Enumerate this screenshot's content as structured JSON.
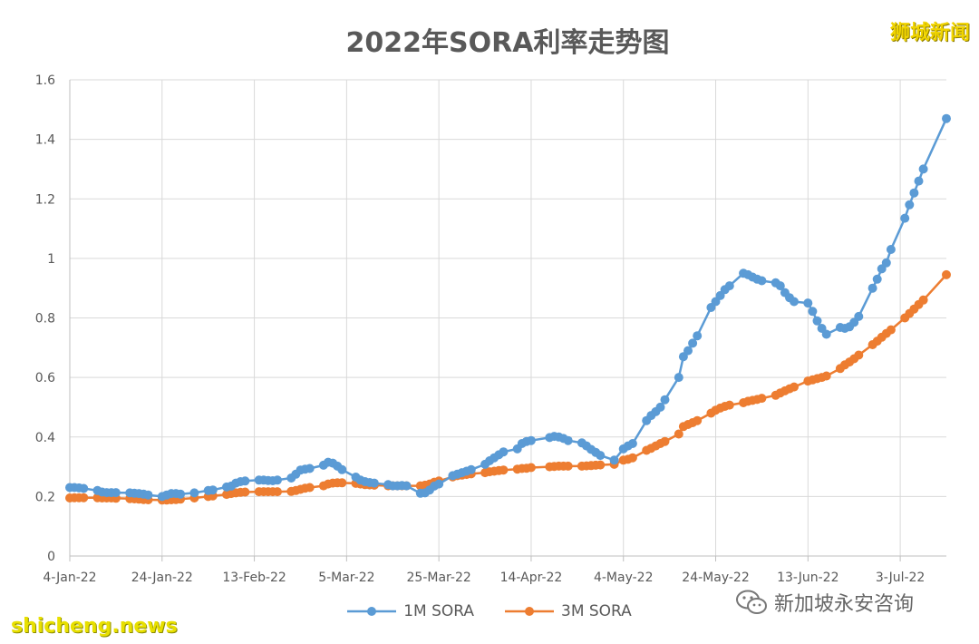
{
  "watermarks": {
    "top_right": "狮城新闻",
    "bottom_left": "shicheng.news",
    "wechat": "新加坡永安咨询"
  },
  "colors": {
    "series_1m": "#5b9bd5",
    "series_3m": "#ed7d31",
    "gridline": "#d9d9d9"
  },
  "chart_data": {
    "type": "line",
    "title": "2022年SORA利率走势图",
    "xlabel": "",
    "ylabel": "",
    "ylim": [
      0,
      1.6
    ],
    "y_ticks": [
      "0",
      "0.2",
      "0.4",
      "0.6",
      "0.8",
      "1",
      "1.2",
      "1.4",
      "1.6"
    ],
    "x_ticks": [
      "4-Jan-22",
      "24-Jan-22",
      "13-Feb-22",
      "5-Mar-22",
      "25-Mar-22",
      "14-Apr-22",
      "4-May-22",
      "24-May-22",
      "13-Jun-22",
      "3-Jul-22"
    ],
    "grid": true,
    "legend": "bottom",
    "series": [
      {
        "name": "1M SORA",
        "points": [
          [
            "2022-01-04",
            0.23
          ],
          [
            "2022-01-05",
            0.23
          ],
          [
            "2022-01-06",
            0.229
          ],
          [
            "2022-01-07",
            0.227
          ],
          [
            "2022-01-10",
            0.22
          ],
          [
            "2022-01-11",
            0.215
          ],
          [
            "2022-01-12",
            0.213
          ],
          [
            "2022-01-13",
            0.213
          ],
          [
            "2022-01-14",
            0.213
          ],
          [
            "2022-01-17",
            0.212
          ],
          [
            "2022-01-18",
            0.211
          ],
          [
            "2022-01-19",
            0.21
          ],
          [
            "2022-01-20",
            0.208
          ],
          [
            "2022-01-21",
            0.205
          ],
          [
            "2022-01-24",
            0.2
          ],
          [
            "2022-01-25",
            0.205
          ],
          [
            "2022-01-26",
            0.21
          ],
          [
            "2022-01-27",
            0.21
          ],
          [
            "2022-01-28",
            0.208
          ],
          [
            "2022-01-31",
            0.212
          ],
          [
            "2022-02-03",
            0.22
          ],
          [
            "2022-02-04",
            0.222
          ],
          [
            "2022-02-07",
            0.232
          ],
          [
            "2022-02-08",
            0.235
          ],
          [
            "2022-02-09",
            0.245
          ],
          [
            "2022-02-10",
            0.25
          ],
          [
            "2022-02-11",
            0.252
          ],
          [
            "2022-02-14",
            0.255
          ],
          [
            "2022-02-15",
            0.255
          ],
          [
            "2022-02-16",
            0.254
          ],
          [
            "2022-02-17",
            0.253
          ],
          [
            "2022-02-18",
            0.255
          ],
          [
            "2022-02-21",
            0.262
          ],
          [
            "2022-02-22",
            0.275
          ],
          [
            "2022-02-23",
            0.289
          ],
          [
            "2022-02-24",
            0.292
          ],
          [
            "2022-02-25",
            0.294
          ],
          [
            "2022-02-28",
            0.305
          ],
          [
            "2022-03-01",
            0.315
          ],
          [
            "2022-03-02",
            0.312
          ],
          [
            "2022-03-03",
            0.302
          ],
          [
            "2022-03-04",
            0.29
          ],
          [
            "2022-03-07",
            0.265
          ],
          [
            "2022-03-08",
            0.255
          ],
          [
            "2022-03-09",
            0.25
          ],
          [
            "2022-03-10",
            0.247
          ],
          [
            "2022-03-11",
            0.245
          ],
          [
            "2022-03-14",
            0.24
          ],
          [
            "2022-03-15",
            0.236
          ],
          [
            "2022-03-16",
            0.236
          ],
          [
            "2022-03-17",
            0.237
          ],
          [
            "2022-03-18",
            0.236
          ],
          [
            "2022-03-21",
            0.211
          ],
          [
            "2022-03-22",
            0.212
          ],
          [
            "2022-03-23",
            0.222
          ],
          [
            "2022-03-24",
            0.235
          ],
          [
            "2022-03-25",
            0.242
          ],
          [
            "2022-03-28",
            0.27
          ],
          [
            "2022-03-29",
            0.275
          ],
          [
            "2022-03-30",
            0.28
          ],
          [
            "2022-03-31",
            0.285
          ],
          [
            "2022-04-01",
            0.29
          ],
          [
            "2022-04-04",
            0.308
          ],
          [
            "2022-04-05",
            0.32
          ],
          [
            "2022-04-06",
            0.33
          ],
          [
            "2022-04-07",
            0.34
          ],
          [
            "2022-04-08",
            0.35
          ],
          [
            "2022-04-11",
            0.36
          ],
          [
            "2022-04-12",
            0.378
          ],
          [
            "2022-04-13",
            0.385
          ],
          [
            "2022-04-14",
            0.388
          ],
          [
            "2022-04-18",
            0.398
          ],
          [
            "2022-04-19",
            0.402
          ],
          [
            "2022-04-20",
            0.4
          ],
          [
            "2022-04-21",
            0.395
          ],
          [
            "2022-04-22",
            0.388
          ],
          [
            "2022-04-25",
            0.38
          ],
          [
            "2022-04-26",
            0.37
          ],
          [
            "2022-04-27",
            0.358
          ],
          [
            "2022-04-28",
            0.348
          ],
          [
            "2022-04-29",
            0.338
          ],
          [
            "2022-05-02",
            0.322
          ],
          [
            "2022-05-04",
            0.36
          ],
          [
            "2022-05-05",
            0.37
          ],
          [
            "2022-05-06",
            0.378
          ],
          [
            "2022-05-09",
            0.455
          ],
          [
            "2022-05-10",
            0.472
          ],
          [
            "2022-05-11",
            0.485
          ],
          [
            "2022-05-12",
            0.5
          ],
          [
            "2022-05-13",
            0.525
          ],
          [
            "2022-05-16",
            0.6
          ],
          [
            "2022-05-17",
            0.67
          ],
          [
            "2022-05-18",
            0.69
          ],
          [
            "2022-05-19",
            0.715
          ],
          [
            "2022-05-20",
            0.74
          ],
          [
            "2022-05-23",
            0.835
          ],
          [
            "2022-05-24",
            0.855
          ],
          [
            "2022-05-25",
            0.875
          ],
          [
            "2022-05-26",
            0.895
          ],
          [
            "2022-05-27",
            0.908
          ],
          [
            "2022-05-30",
            0.95
          ],
          [
            "2022-05-31",
            0.945
          ],
          [
            "2022-06-01",
            0.937
          ],
          [
            "2022-06-02",
            0.93
          ],
          [
            "2022-06-03",
            0.925
          ],
          [
            "2022-06-06",
            0.918
          ],
          [
            "2022-06-07",
            0.908
          ],
          [
            "2022-06-08",
            0.885
          ],
          [
            "2022-06-09",
            0.868
          ],
          [
            "2022-06-10",
            0.855
          ],
          [
            "2022-06-13",
            0.85
          ],
          [
            "2022-06-14",
            0.822
          ],
          [
            "2022-06-15",
            0.79
          ],
          [
            "2022-06-16",
            0.765
          ],
          [
            "2022-06-17",
            0.745
          ],
          [
            "2022-06-20",
            0.768
          ],
          [
            "2022-06-21",
            0.765
          ],
          [
            "2022-06-22",
            0.77
          ],
          [
            "2022-06-23",
            0.785
          ],
          [
            "2022-06-24",
            0.805
          ],
          [
            "2022-06-27",
            0.9
          ],
          [
            "2022-06-28",
            0.93
          ],
          [
            "2022-06-29",
            0.965
          ],
          [
            "2022-06-30",
            0.985
          ],
          [
            "2022-07-01",
            1.03
          ],
          [
            "2022-07-04",
            1.135
          ],
          [
            "2022-07-05",
            1.18
          ],
          [
            "2022-07-06",
            1.22
          ],
          [
            "2022-07-07",
            1.26
          ],
          [
            "2022-07-08",
            1.3
          ],
          [
            "2022-07-13",
            1.47
          ]
        ]
      },
      {
        "name": "3M SORA",
        "points": [
          [
            "2022-01-04",
            0.195
          ],
          [
            "2022-01-05",
            0.196
          ],
          [
            "2022-01-06",
            0.196
          ],
          [
            "2022-01-07",
            0.196
          ],
          [
            "2022-01-10",
            0.196
          ],
          [
            "2022-01-11",
            0.195
          ],
          [
            "2022-01-12",
            0.195
          ],
          [
            "2022-01-13",
            0.195
          ],
          [
            "2022-01-14",
            0.194
          ],
          [
            "2022-01-17",
            0.193
          ],
          [
            "2022-01-18",
            0.192
          ],
          [
            "2022-01-19",
            0.191
          ],
          [
            "2022-01-20",
            0.19
          ],
          [
            "2022-01-21",
            0.189
          ],
          [
            "2022-01-24",
            0.188
          ],
          [
            "2022-01-25",
            0.188
          ],
          [
            "2022-01-26",
            0.189
          ],
          [
            "2022-01-27",
            0.19
          ],
          [
            "2022-01-28",
            0.191
          ],
          [
            "2022-01-31",
            0.195
          ],
          [
            "2022-02-03",
            0.2
          ],
          [
            "2022-02-04",
            0.202
          ],
          [
            "2022-02-07",
            0.207
          ],
          [
            "2022-02-08",
            0.21
          ],
          [
            "2022-02-09",
            0.212
          ],
          [
            "2022-02-10",
            0.214
          ],
          [
            "2022-02-11",
            0.215
          ],
          [
            "2022-02-14",
            0.216
          ],
          [
            "2022-02-15",
            0.216
          ],
          [
            "2022-02-16",
            0.216
          ],
          [
            "2022-02-17",
            0.216
          ],
          [
            "2022-02-18",
            0.216
          ],
          [
            "2022-02-21",
            0.217
          ],
          [
            "2022-02-22",
            0.22
          ],
          [
            "2022-02-23",
            0.224
          ],
          [
            "2022-02-24",
            0.228
          ],
          [
            "2022-02-25",
            0.23
          ],
          [
            "2022-02-28",
            0.236
          ],
          [
            "2022-03-01",
            0.242
          ],
          [
            "2022-03-02",
            0.245
          ],
          [
            "2022-03-03",
            0.246
          ],
          [
            "2022-03-04",
            0.246
          ],
          [
            "2022-03-07",
            0.244
          ],
          [
            "2022-03-08",
            0.242
          ],
          [
            "2022-03-09",
            0.24
          ],
          [
            "2022-03-10",
            0.239
          ],
          [
            "2022-03-11",
            0.238
          ],
          [
            "2022-03-14",
            0.236
          ],
          [
            "2022-03-15",
            0.236
          ],
          [
            "2022-03-16",
            0.236
          ],
          [
            "2022-03-17",
            0.236
          ],
          [
            "2022-03-18",
            0.236
          ],
          [
            "2022-03-21",
            0.236
          ],
          [
            "2022-03-22",
            0.238
          ],
          [
            "2022-03-23",
            0.242
          ],
          [
            "2022-03-24",
            0.248
          ],
          [
            "2022-03-25",
            0.252
          ],
          [
            "2022-03-28",
            0.266
          ],
          [
            "2022-03-29",
            0.27
          ],
          [
            "2022-03-30",
            0.272
          ],
          [
            "2022-03-31",
            0.274
          ],
          [
            "2022-04-01",
            0.276
          ],
          [
            "2022-04-04",
            0.28
          ],
          [
            "2022-04-05",
            0.283
          ],
          [
            "2022-04-06",
            0.285
          ],
          [
            "2022-04-07",
            0.287
          ],
          [
            "2022-04-08",
            0.289
          ],
          [
            "2022-04-11",
            0.292
          ],
          [
            "2022-04-12",
            0.294
          ],
          [
            "2022-04-13",
            0.295
          ],
          [
            "2022-04-14",
            0.297
          ],
          [
            "2022-04-18",
            0.3
          ],
          [
            "2022-04-19",
            0.301
          ],
          [
            "2022-04-20",
            0.302
          ],
          [
            "2022-04-21",
            0.302
          ],
          [
            "2022-04-22",
            0.302
          ],
          [
            "2022-04-25",
            0.302
          ],
          [
            "2022-04-26",
            0.303
          ],
          [
            "2022-04-27",
            0.304
          ],
          [
            "2022-04-28",
            0.305
          ],
          [
            "2022-04-29",
            0.306
          ],
          [
            "2022-05-02",
            0.308
          ],
          [
            "2022-05-04",
            0.322
          ],
          [
            "2022-05-05",
            0.325
          ],
          [
            "2022-05-06",
            0.33
          ],
          [
            "2022-05-09",
            0.355
          ],
          [
            "2022-05-10",
            0.362
          ],
          [
            "2022-05-11",
            0.37
          ],
          [
            "2022-05-12",
            0.378
          ],
          [
            "2022-05-13",
            0.385
          ],
          [
            "2022-05-16",
            0.41
          ],
          [
            "2022-05-17",
            0.435
          ],
          [
            "2022-05-18",
            0.442
          ],
          [
            "2022-05-19",
            0.448
          ],
          [
            "2022-05-20",
            0.455
          ],
          [
            "2022-05-23",
            0.48
          ],
          [
            "2022-05-24",
            0.49
          ],
          [
            "2022-05-25",
            0.497
          ],
          [
            "2022-05-26",
            0.503
          ],
          [
            "2022-05-27",
            0.507
          ],
          [
            "2022-05-30",
            0.515
          ],
          [
            "2022-05-31",
            0.52
          ],
          [
            "2022-06-01",
            0.523
          ],
          [
            "2022-06-02",
            0.526
          ],
          [
            "2022-06-03",
            0.53
          ],
          [
            "2022-06-06",
            0.54
          ],
          [
            "2022-06-07",
            0.548
          ],
          [
            "2022-06-08",
            0.555
          ],
          [
            "2022-06-09",
            0.562
          ],
          [
            "2022-06-10",
            0.568
          ],
          [
            "2022-06-13",
            0.588
          ],
          [
            "2022-06-14",
            0.592
          ],
          [
            "2022-06-15",
            0.596
          ],
          [
            "2022-06-16",
            0.6
          ],
          [
            "2022-06-17",
            0.605
          ],
          [
            "2022-06-20",
            0.63
          ],
          [
            "2022-06-21",
            0.642
          ],
          [
            "2022-06-22",
            0.652
          ],
          [
            "2022-06-23",
            0.663
          ],
          [
            "2022-06-24",
            0.675
          ],
          [
            "2022-06-27",
            0.71
          ],
          [
            "2022-06-28",
            0.722
          ],
          [
            "2022-06-29",
            0.735
          ],
          [
            "2022-06-30",
            0.748
          ],
          [
            "2022-07-01",
            0.76
          ],
          [
            "2022-07-04",
            0.8
          ],
          [
            "2022-07-05",
            0.815
          ],
          [
            "2022-07-06",
            0.83
          ],
          [
            "2022-07-07",
            0.845
          ],
          [
            "2022-07-08",
            0.86
          ],
          [
            "2022-07-13",
            0.945
          ]
        ]
      }
    ]
  }
}
